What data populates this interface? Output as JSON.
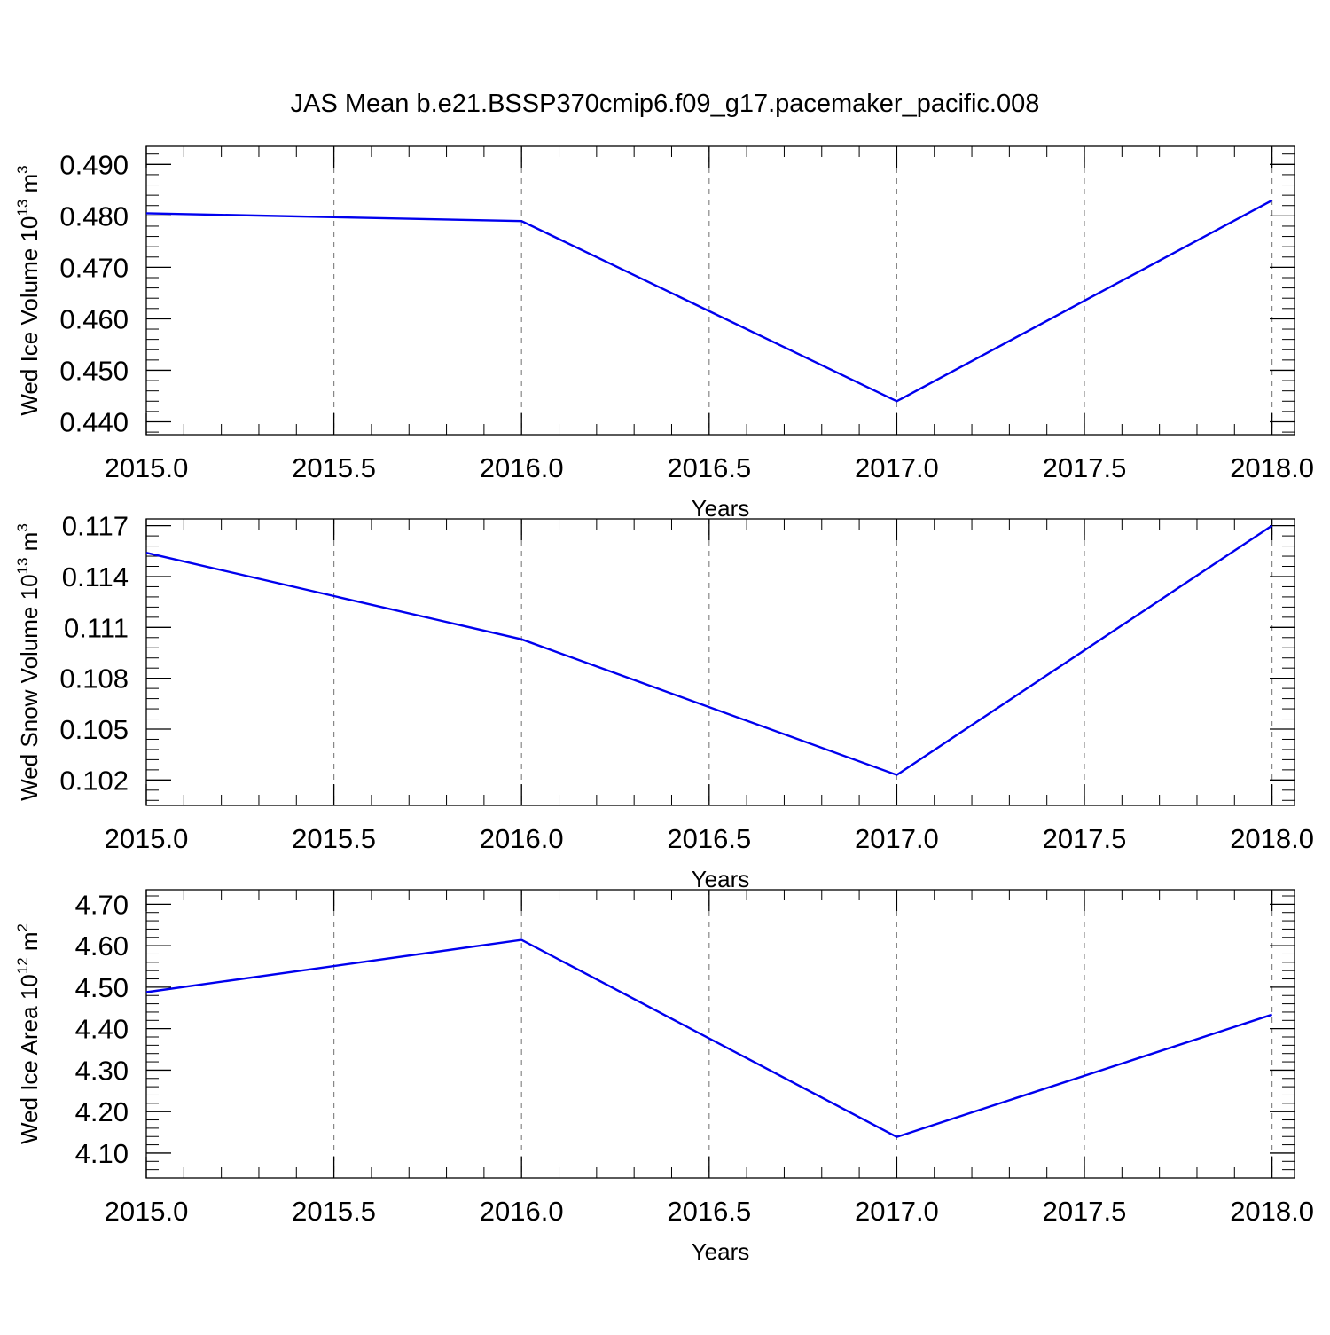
{
  "title": "JAS Mean b.e21.BSSP370cmip6.f09_g17.pacemaker_pacific.008",
  "colors": {
    "line": "#0000ee",
    "axis": "#000000",
    "grid": "#888888"
  },
  "chart_data": [
    {
      "type": "line",
      "xlabel": "Years",
      "ylabel_main": "Wed Ice Volume 10",
      "ylabel_exp": "13",
      "ylabel_unit": " m",
      "ylabel_unit_exp": "3",
      "x": [
        2015,
        2016,
        2017,
        2018
      ],
      "y": [
        0.4805,
        0.479,
        0.444,
        0.483
      ],
      "xlim": [
        2015,
        2018.06
      ],
      "ylim": [
        0.4375,
        0.4935
      ],
      "xticks": [
        "2015.0",
        "2015.5",
        "2016.0",
        "2016.5",
        "2017.0",
        "2017.5",
        "2018.0"
      ],
      "yticks": [
        "0.440",
        "0.450",
        "0.460",
        "0.470",
        "0.480",
        "0.490"
      ],
      "grid": "x-major-dashed"
    },
    {
      "type": "line",
      "xlabel": "Years",
      "ylabel_main": "Wed Snow Volume 10",
      "ylabel_exp": "13",
      "ylabel_unit": " m",
      "ylabel_unit_exp": "3",
      "x": [
        2015,
        2016,
        2017,
        2018
      ],
      "y": [
        0.1154,
        0.1103,
        0.1023,
        0.117
      ],
      "xlim": [
        2015,
        2018.06
      ],
      "ylim": [
        0.1005,
        0.1174
      ],
      "xticks": [
        "2015.0",
        "2015.5",
        "2016.0",
        "2016.5",
        "2017.0",
        "2017.5",
        "2018.0"
      ],
      "yticks": [
        "0.102",
        "0.105",
        "0.108",
        "0.111",
        "0.114",
        "0.117"
      ],
      "grid": "x-major-dashed"
    },
    {
      "type": "line",
      "xlabel": "Years",
      "ylabel_main": "Wed Ice Area 10",
      "ylabel_exp": "12",
      "ylabel_unit": " m",
      "ylabel_unit_exp": "2",
      "x": [
        2015,
        2016,
        2017,
        2018
      ],
      "y": [
        4.488,
        4.614,
        4.139,
        4.434
      ],
      "xlim": [
        2015,
        2018.06
      ],
      "ylim": [
        4.04,
        4.735
      ],
      "xticks": [
        "2015.0",
        "2015.5",
        "2016.0",
        "2016.5",
        "2017.0",
        "2017.5",
        "2018.0"
      ],
      "yticks": [
        "4.10",
        "4.20",
        "4.30",
        "4.40",
        "4.50",
        "4.60",
        "4.70"
      ],
      "grid": "x-major-dashed"
    }
  ]
}
